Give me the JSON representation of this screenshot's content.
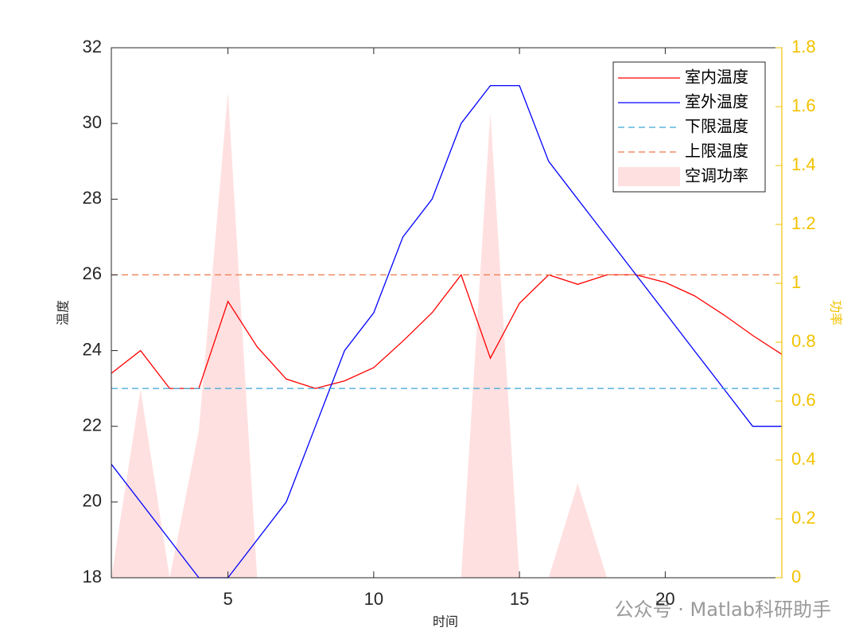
{
  "chart_data": {
    "type": "line",
    "x_label": "时间",
    "y_label": "温度",
    "y2_label": "功率",
    "x": [
      1,
      2,
      3,
      4,
      5,
      6,
      7,
      8,
      9,
      10,
      11,
      12,
      13,
      14,
      15,
      16,
      17,
      18,
      19,
      20,
      21,
      22,
      23,
      24
    ],
    "xlim": [
      1,
      24
    ],
    "xticks": [
      5,
      10,
      15,
      20
    ],
    "ylim": [
      18,
      32
    ],
    "yticks": [
      18,
      20,
      22,
      24,
      26,
      28,
      30,
      32
    ],
    "y2lim": [
      0,
      1.8
    ],
    "y2ticks": [
      0,
      0.2,
      0.4,
      0.6,
      0.8,
      1,
      1.2,
      1.4,
      1.6,
      1.8
    ],
    "y2_color": "#f2c200",
    "legend": "upper right",
    "series": [
      {
        "name": "空调功率",
        "color": "#ffe0e0",
        "style": "area",
        "axis": "y2",
        "values": [
          0,
          0.64,
          0,
          0.5,
          1.65,
          0,
          0,
          0,
          0,
          0,
          0,
          0,
          0,
          1.58,
          0,
          0,
          0.32,
          0,
          0,
          0,
          0,
          0,
          0,
          0
        ]
      },
      {
        "name": "室内温度",
        "color": "#ff0000",
        "style": "solid",
        "values": [
          23.4,
          24.0,
          23.0,
          23.0,
          25.3,
          24.1,
          23.25,
          23.0,
          23.2,
          23.55,
          24.25,
          25.0,
          26.0,
          23.8,
          25.25,
          26.0,
          25.75,
          26.0,
          26.0,
          25.8,
          25.45,
          24.95,
          24.4,
          23.9
        ]
      },
      {
        "name": "室外温度",
        "color": "#0000ff",
        "style": "solid",
        "values": [
          21,
          20,
          19,
          18,
          18,
          19,
          20,
          22,
          24,
          25,
          27,
          28,
          30,
          31,
          31,
          29,
          28,
          27,
          26,
          25,
          24,
          23,
          22,
          22
        ]
      },
      {
        "name": "下限温度",
        "color": "#3aa6d8",
        "style": "dashed",
        "values": [
          23,
          23,
          23,
          23,
          23,
          23,
          23,
          23,
          23,
          23,
          23,
          23,
          23,
          23,
          23,
          23,
          23,
          23,
          23,
          23,
          23,
          23,
          23,
          23
        ]
      },
      {
        "name": "上限温度",
        "color": "#f07848",
        "style": "dashed",
        "values": [
          26,
          26,
          26,
          26,
          26,
          26,
          26,
          26,
          26,
          26,
          26,
          26,
          26,
          26,
          26,
          26,
          26,
          26,
          26,
          26,
          26,
          26,
          26,
          26
        ]
      }
    ],
    "legend_order": [
      1,
      2,
      3,
      4,
      0
    ],
    "annotations": [
      "公众号 · Matlab科研助手"
    ]
  }
}
